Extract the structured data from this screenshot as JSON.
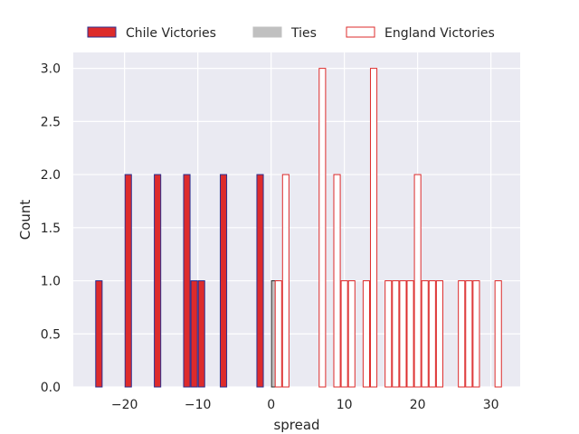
{
  "chart_data": {
    "type": "bar",
    "xlabel": "spread",
    "ylabel": "Count",
    "xlim": [
      -27,
      34
    ],
    "ylim": [
      0,
      3.15
    ],
    "bin_width": 1,
    "x_ticks": [
      -20,
      -10,
      0,
      10,
      20,
      30
    ],
    "x_tick_labels": [
      "−20",
      "−10",
      "0",
      "10",
      "20",
      "30"
    ],
    "y_ticks": [
      0,
      0.5,
      1,
      1.5,
      2,
      2.5,
      3
    ],
    "y_tick_labels": [
      "0.0",
      "0.5",
      "1.0",
      "1.5",
      "2.0",
      "2.5",
      "3.0"
    ],
    "grid": true,
    "legend_position": "top-center",
    "series": [
      {
        "name": "Chile Victories",
        "fill": "#dd2b2b",
        "edge": "#2c2f8f",
        "bins": [
          {
            "x": -24,
            "count": 1
          },
          {
            "x": -20,
            "count": 2
          },
          {
            "x": -16,
            "count": 2
          },
          {
            "x": -12,
            "count": 2
          },
          {
            "x": -11,
            "count": 1
          },
          {
            "x": -10,
            "count": 1
          },
          {
            "x": -7,
            "count": 2
          },
          {
            "x": -2,
            "count": 2
          }
        ]
      },
      {
        "name": "Ties",
        "fill": "#c0c0c0",
        "edge": "#2b2b2b",
        "bins": [
          {
            "x": 0,
            "count": 1
          }
        ]
      },
      {
        "name": "England Victories",
        "fill": "#ffffff",
        "edge": "#dd2b2b",
        "bins": [
          {
            "x": 0.5,
            "count": 1
          },
          {
            "x": 1.5,
            "count": 2
          },
          {
            "x": 6.5,
            "count": 3
          },
          {
            "x": 8.5,
            "count": 2
          },
          {
            "x": 9.5,
            "count": 1
          },
          {
            "x": 10.5,
            "count": 1
          },
          {
            "x": 12.5,
            "count": 1
          },
          {
            "x": 13.5,
            "count": 3
          },
          {
            "x": 15.5,
            "count": 1
          },
          {
            "x": 16.5,
            "count": 1
          },
          {
            "x": 17.5,
            "count": 1
          },
          {
            "x": 18.5,
            "count": 1
          },
          {
            "x": 19.5,
            "count": 2
          },
          {
            "x": 20.5,
            "count": 1
          },
          {
            "x": 21.5,
            "count": 1
          },
          {
            "x": 22.5,
            "count": 1
          },
          {
            "x": 25.5,
            "count": 1
          },
          {
            "x": 26.5,
            "count": 1
          },
          {
            "x": 27.5,
            "count": 1
          },
          {
            "x": 30.5,
            "count": 1
          }
        ]
      }
    ]
  }
}
